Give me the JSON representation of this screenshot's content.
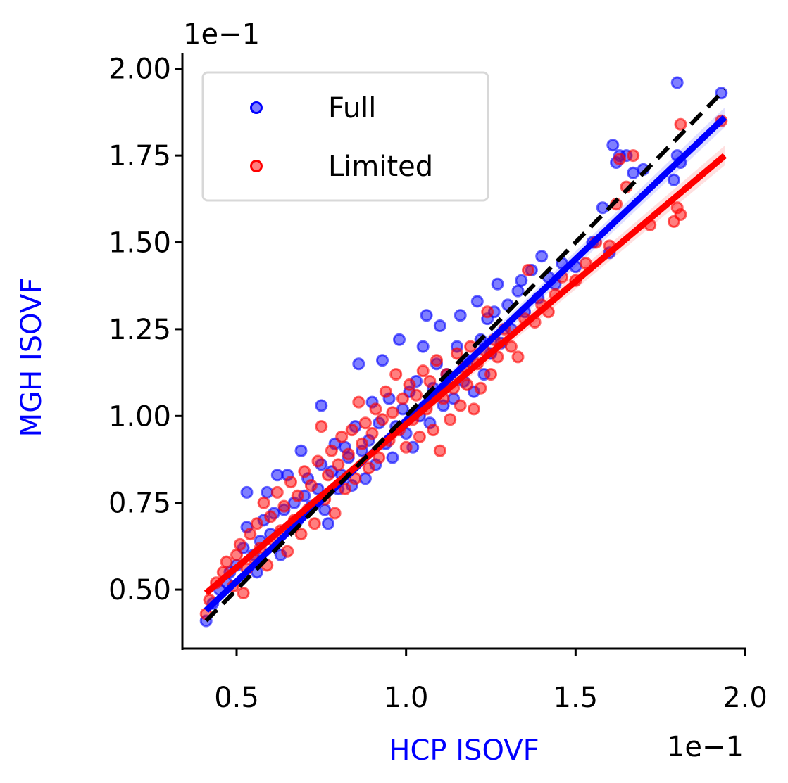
{
  "chart_data": {
    "type": "scatter",
    "xlabel": "HCP ISOVF",
    "ylabel": "MGH ISOVF",
    "axis_label_color": "#0000ff",
    "x_offset_text": "1e−1",
    "y_offset_text": "1e−1",
    "xlim": [
      0.34,
      2.0
    ],
    "ylim": [
      0.33,
      2.04
    ],
    "x_ticks": [
      0.5,
      1.0,
      1.5,
      2.0
    ],
    "x_tick_labels": [
      "0.5",
      "1.0",
      "1.5",
      "2.0"
    ],
    "y_ticks": [
      0.5,
      0.75,
      1.0,
      1.25,
      1.5,
      1.75,
      2.0
    ],
    "y_tick_labels": [
      "0.50",
      "0.75",
      "1.00",
      "1.25",
      "1.50",
      "1.75",
      "2.00"
    ],
    "grid": false,
    "legend_position": "top-left",
    "series": [
      {
        "name": "Full",
        "color": "#0000ff",
        "fit_line": {
          "x": [
            0.41,
            1.94
          ],
          "y": [
            0.44,
            1.86
          ]
        },
        "points": [
          [
            0.41,
            0.41
          ],
          [
            0.43,
            0.46
          ],
          [
            0.45,
            0.5
          ],
          [
            0.47,
            0.52
          ],
          [
            0.48,
            0.55
          ],
          [
            0.5,
            0.57
          ],
          [
            0.52,
            0.62
          ],
          [
            0.53,
            0.68
          ],
          [
            0.53,
            0.78
          ],
          [
            0.55,
            0.6
          ],
          [
            0.56,
            0.55
          ],
          [
            0.57,
            0.64
          ],
          [
            0.58,
            0.7
          ],
          [
            0.59,
            0.78
          ],
          [
            0.6,
            0.66
          ],
          [
            0.61,
            0.72
          ],
          [
            0.62,
            0.83
          ],
          [
            0.63,
            0.6
          ],
          [
            0.64,
            0.73
          ],
          [
            0.65,
            0.83
          ],
          [
            0.66,
            0.68
          ],
          [
            0.67,
            0.75
          ],
          [
            0.68,
            0.7
          ],
          [
            0.69,
            0.9
          ],
          [
            0.7,
            0.77
          ],
          [
            0.71,
            0.82
          ],
          [
            0.72,
            0.74
          ],
          [
            0.74,
            0.79
          ],
          [
            0.75,
            0.86
          ],
          [
            0.75,
            1.03
          ],
          [
            0.76,
            0.73
          ],
          [
            0.77,
            0.69
          ],
          [
            0.78,
            0.84
          ],
          [
            0.79,
            0.92
          ],
          [
            0.8,
            0.79
          ],
          [
            0.81,
            0.83
          ],
          [
            0.82,
            0.91
          ],
          [
            0.83,
            0.88
          ],
          [
            0.84,
            0.8
          ],
          [
            0.85,
            0.97
          ],
          [
            0.86,
            1.15
          ],
          [
            0.87,
            0.9
          ],
          [
            0.88,
            0.82
          ],
          [
            0.89,
            0.93
          ],
          [
            0.9,
            1.04
          ],
          [
            0.91,
            0.86
          ],
          [
            0.92,
            0.98
          ],
          [
            0.93,
            1.16
          ],
          [
            0.94,
            0.92
          ],
          [
            0.95,
            1.05
          ],
          [
            0.96,
            0.88
          ],
          [
            0.97,
            0.97
          ],
          [
            0.98,
            1.22
          ],
          [
            0.99,
            1.02
          ],
          [
            1.0,
            0.95
          ],
          [
            1.01,
            1.07
          ],
          [
            1.02,
            0.91
          ],
          [
            1.03,
            1.1
          ],
          [
            1.04,
            1.0
          ],
          [
            1.05,
            1.2
          ],
          [
            1.06,
            1.29
          ],
          [
            1.07,
            0.98
          ],
          [
            1.08,
            1.08
          ],
          [
            1.09,
            1.15
          ],
          [
            1.1,
            1.26
          ],
          [
            1.11,
            1.03
          ],
          [
            1.12,
            1.12
          ],
          [
            1.14,
            1.05
          ],
          [
            1.15,
            1.2
          ],
          [
            1.16,
            1.29
          ],
          [
            1.17,
            1.1
          ],
          [
            1.18,
            1.16
          ],
          [
            1.2,
            1.07
          ],
          [
            1.21,
            1.33
          ],
          [
            1.22,
            1.22
          ],
          [
            1.23,
            1.12
          ],
          [
            1.24,
            1.28
          ],
          [
            1.25,
            1.18
          ],
          [
            1.26,
            1.3
          ],
          [
            1.27,
            1.38
          ],
          [
            1.28,
            1.21
          ],
          [
            1.3,
            1.32
          ],
          [
            1.31,
            1.25
          ],
          [
            1.33,
            1.36
          ],
          [
            1.34,
            1.39
          ],
          [
            1.35,
            1.3
          ],
          [
            1.37,
            1.42
          ],
          [
            1.39,
            1.34
          ],
          [
            1.4,
            1.46
          ],
          [
            1.42,
            1.4
          ],
          [
            1.44,
            1.38
          ],
          [
            1.46,
            1.44
          ],
          [
            1.5,
            1.43
          ],
          [
            1.55,
            1.5
          ],
          [
            1.58,
            1.6
          ],
          [
            1.6,
            1.47
          ],
          [
            1.61,
            1.78
          ],
          [
            1.62,
            1.73
          ],
          [
            1.63,
            1.75
          ],
          [
            1.65,
            1.75
          ],
          [
            1.67,
            1.7
          ],
          [
            1.7,
            1.71
          ],
          [
            1.79,
            1.68
          ],
          [
            1.8,
            1.75
          ],
          [
            1.8,
            1.96
          ],
          [
            1.81,
            1.73
          ],
          [
            1.93,
            1.93
          ]
        ]
      },
      {
        "name": "Limited",
        "color": "#ff0000",
        "fit_line": {
          "x": [
            0.41,
            1.94
          ],
          "y": [
            0.49,
            1.75
          ]
        },
        "points": [
          [
            0.41,
            0.43
          ],
          [
            0.42,
            0.47
          ],
          [
            0.44,
            0.52
          ],
          [
            0.46,
            0.55
          ],
          [
            0.47,
            0.58
          ],
          [
            0.49,
            0.51
          ],
          [
            0.5,
            0.6
          ],
          [
            0.51,
            0.63
          ],
          [
            0.52,
            0.49
          ],
          [
            0.53,
            0.56
          ],
          [
            0.54,
            0.66
          ],
          [
            0.55,
            0.59
          ],
          [
            0.56,
            0.69
          ],
          [
            0.57,
            0.62
          ],
          [
            0.58,
            0.75
          ],
          [
            0.59,
            0.57
          ],
          [
            0.6,
            0.71
          ],
          [
            0.61,
            0.64
          ],
          [
            0.62,
            0.78
          ],
          [
            0.63,
            0.67
          ],
          [
            0.64,
            0.74
          ],
          [
            0.65,
            0.61
          ],
          [
            0.66,
            0.81
          ],
          [
            0.67,
            0.7
          ],
          [
            0.68,
            0.77
          ],
          [
            0.69,
            0.66
          ],
          [
            0.7,
            0.84
          ],
          [
            0.71,
            0.73
          ],
          [
            0.72,
            0.8
          ],
          [
            0.73,
            0.69
          ],
          [
            0.74,
            0.87
          ],
          [
            0.75,
            0.97
          ],
          [
            0.76,
            0.76
          ],
          [
            0.77,
            0.83
          ],
          [
            0.78,
            0.9
          ],
          [
            0.79,
            0.72
          ],
          [
            0.8,
            0.86
          ],
          [
            0.81,
            0.94
          ],
          [
            0.82,
            0.79
          ],
          [
            0.83,
            0.89
          ],
          [
            0.84,
            0.96
          ],
          [
            0.85,
            0.82
          ],
          [
            0.86,
            1.04
          ],
          [
            0.87,
            0.92
          ],
          [
            0.88,
            0.98
          ],
          [
            0.89,
            0.85
          ],
          [
            0.9,
            0.95
          ],
          [
            0.91,
            1.02
          ],
          [
            0.92,
            0.88
          ],
          [
            0.93,
            0.99
          ],
          [
            0.94,
            1.07
          ],
          [
            0.95,
            0.93
          ],
          [
            0.96,
            1.01
          ],
          [
            0.97,
            1.12
          ],
          [
            0.98,
            0.96
          ],
          [
            0.99,
            1.05
          ],
          [
            1.0,
            0.91
          ],
          [
            1.01,
            1.09
          ],
          [
            1.02,
            0.99
          ],
          [
            1.03,
            1.06
          ],
          [
            1.04,
            0.94
          ],
          [
            1.05,
            1.13
          ],
          [
            1.06,
            1.02
          ],
          [
            1.07,
            1.1
          ],
          [
            1.08,
            0.96
          ],
          [
            1.09,
            1.16
          ],
          [
            1.1,
            0.9
          ],
          [
            1.11,
            1.05
          ],
          [
            1.12,
            1.12
          ],
          [
            1.13,
            0.99
          ],
          [
            1.14,
            1.08
          ],
          [
            1.15,
            1.18
          ],
          [
            1.16,
            1.03
          ],
          [
            1.17,
            1.14
          ],
          [
            1.18,
            1.09
          ],
          [
            1.19,
            1.2
          ],
          [
            1.2,
            1.02
          ],
          [
            1.21,
            1.15
          ],
          [
            1.22,
            1.08
          ],
          [
            1.23,
            1.19
          ],
          [
            1.24,
            1.3
          ],
          [
            1.25,
            1.12
          ],
          [
            1.26,
            1.22
          ],
          [
            1.27,
            1.17
          ],
          [
            1.29,
            1.25
          ],
          [
            1.31,
            1.2
          ],
          [
            1.33,
            1.17
          ],
          [
            1.35,
            1.28
          ],
          [
            1.36,
            1.42
          ],
          [
            1.38,
            1.27
          ],
          [
            1.4,
            1.32
          ],
          [
            1.42,
            1.3
          ],
          [
            1.44,
            1.35
          ],
          [
            1.46,
            1.4
          ],
          [
            1.5,
            1.39
          ],
          [
            1.53,
            1.44
          ],
          [
            1.56,
            1.5
          ],
          [
            1.6,
            1.49
          ],
          [
            1.62,
            1.61
          ],
          [
            1.63,
            1.74
          ],
          [
            1.65,
            1.66
          ],
          [
            1.67,
            1.75
          ],
          [
            1.72,
            1.55
          ],
          [
            1.79,
            1.56
          ],
          [
            1.8,
            1.6
          ],
          [
            1.81,
            1.58
          ],
          [
            1.81,
            1.84
          ],
          [
            1.93,
            1.85
          ]
        ]
      }
    ],
    "reference_line": {
      "x": [
        0.41,
        1.94
      ],
      "y": [
        0.41,
        1.94
      ],
      "color": "#000000"
    }
  }
}
